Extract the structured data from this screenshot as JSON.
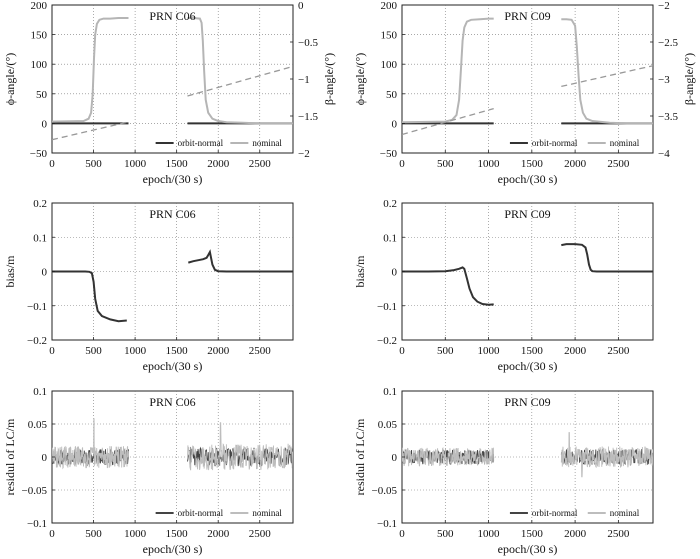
{
  "chart_data": [
    {
      "id": "p1",
      "type": "line",
      "title": "PRN C06",
      "xlabel": "epoch/(30 s)",
      "ylabel": "ϕ-angle/(°)",
      "ylabel_right": "β-angle/(°)",
      "xlim": [
        0,
        2900
      ],
      "ylim": [
        -50,
        200
      ],
      "ylim_right": [
        -2,
        0
      ],
      "xticks": [
        "0",
        "500",
        "1000",
        "1500",
        "2000",
        "2500"
      ],
      "yticks": [
        "−50",
        "0",
        "50",
        "100",
        "150",
        "200"
      ],
      "yticks_right": [
        "−2",
        "−1.5",
        "−1",
        "−0.5",
        "0"
      ],
      "grid": true,
      "legend": "bottom-right",
      "legend_entries": [
        "orbit-normal",
        "nominal"
      ],
      "series": [
        {
          "name": "orbit-normal",
          "axis": "left",
          "color": "#333333",
          "segments": [
            {
              "x": [
                0,
                920
              ],
              "y": [
                0,
                0
              ]
            },
            {
              "x": [
                1630,
                2900
              ],
              "y": [
                0,
                0
              ]
            }
          ]
        },
        {
          "name": "nominal",
          "axis": "left",
          "color": "#b5b5b5",
          "segments": [
            {
              "x": [
                0,
                380,
                440,
                470,
                490,
                505,
                520,
                540,
                570,
                620,
                700,
                800,
                900,
                920
              ],
              "y": [
                3,
                4,
                8,
                18,
                50,
                110,
                150,
                168,
                175,
                177,
                177,
                178,
                178,
                178
              ]
            },
            {
              "x": [
                1630,
                1700,
                1780,
                1800,
                1815,
                1830,
                1850,
                1880,
                1930,
                2000,
                2100,
                2300,
                2500,
                2700,
                2900
              ],
              "y": [
                178,
                178,
                177,
                170,
                140,
                90,
                40,
                18,
                8,
                4,
                2,
                1,
                0,
                0,
                0
              ]
            }
          ]
        },
        {
          "name": "β-angle",
          "axis": "right",
          "color": "#999999",
          "dashed": true,
          "segments": [
            {
              "x": [
                0,
                920
              ],
              "y": [
                -1.82,
                -1.58
              ]
            },
            {
              "x": [
                1630,
                2900
              ],
              "y": [
                -1.23,
                -0.83
              ]
            }
          ]
        }
      ]
    },
    {
      "id": "p2",
      "type": "line",
      "title": "PRN C09",
      "xlabel": "epoch/(30 s)",
      "ylabel": "ϕ-angle/(°)",
      "ylabel_right": "β-angle/(°)",
      "xlim": [
        0,
        2900
      ],
      "ylim": [
        -50,
        200
      ],
      "ylim_right": [
        -4,
        -2
      ],
      "xticks": [
        "0",
        "500",
        "1000",
        "1500",
        "2000",
        "2500"
      ],
      "yticks": [
        "−50",
        "0",
        "50",
        "100",
        "150",
        "200"
      ],
      "yticks_right": [
        "−4",
        "−3.5",
        "−3",
        "−2.5",
        "−2"
      ],
      "grid": true,
      "legend": "bottom-right",
      "legend_entries": [
        "orbit-normal",
        "nominal"
      ],
      "series": [
        {
          "name": "orbit-normal",
          "axis": "left",
          "color": "#333333",
          "segments": [
            {
              "x": [
                0,
                1060
              ],
              "y": [
                0,
                0
              ]
            },
            {
              "x": [
                1840,
                2900
              ],
              "y": [
                0,
                0
              ]
            }
          ]
        },
        {
          "name": "nominal",
          "axis": "left",
          "color": "#b5b5b5",
          "segments": [
            {
              "x": [
                0,
                500,
                580,
                630,
                660,
                680,
                700,
                720,
                750,
                800,
                900,
                1000,
                1060
              ],
              "y": [
                2,
                3,
                6,
                14,
                40,
                90,
                140,
                162,
                172,
                175,
                176,
                177,
                177
              ]
            },
            {
              "x": [
                1840,
                1900,
                1960,
                2000,
                2020,
                2040,
                2060,
                2090,
                2130,
                2200,
                2400,
                2600,
                2900
              ],
              "y": [
                176,
                176,
                175,
                165,
                130,
                80,
                40,
                18,
                8,
                4,
                1,
                0,
                0
              ]
            }
          ]
        },
        {
          "name": "β-angle",
          "axis": "right",
          "color": "#999999",
          "dashed": true,
          "segments": [
            {
              "x": [
                0,
                1060
              ],
              "y": [
                -3.75,
                -3.4
              ]
            },
            {
              "x": [
                1840,
                2900
              ],
              "y": [
                -3.1,
                -2.82
              ]
            }
          ]
        }
      ]
    },
    {
      "id": "p3",
      "type": "line",
      "title": "PRN C06",
      "xlabel": "epoch/(30 s)",
      "ylabel": "bias/m",
      "xlim": [
        0,
        2900
      ],
      "ylim": [
        -0.2,
        0.2
      ],
      "xticks": [
        "0",
        "500",
        "1000",
        "1500",
        "2000",
        "2500"
      ],
      "yticks": [
        "−0.2",
        "−0.1",
        "0",
        "0.1",
        "0.2"
      ],
      "grid": true,
      "series": [
        {
          "name": "bias",
          "color": "#333333",
          "segments": [
            {
              "x": [
                0,
                400,
                450,
                480,
                500,
                520,
                550,
                600,
                700,
                800,
                900
              ],
              "y": [
                0,
                0,
                -0.001,
                -0.005,
                -0.03,
                -0.08,
                -0.115,
                -0.13,
                -0.14,
                -0.145,
                -0.143
              ]
            },
            {
              "x": [
                1640,
                1700,
                1760,
                1820,
                1860,
                1880,
                1900,
                1910,
                1930,
                1960,
                2000,
                2100,
                2300,
                2500,
                2700,
                2900
              ],
              "y": [
                0.026,
                0.03,
                0.033,
                0.036,
                0.04,
                0.048,
                0.057,
                0.045,
                0.02,
                0.005,
                0.001,
                0,
                0,
                0,
                0,
                0
              ]
            }
          ]
        }
      ]
    },
    {
      "id": "p4",
      "type": "line",
      "title": "PRN C09",
      "xlabel": "epoch/(30 s)",
      "ylabel": "bias/m",
      "xlim": [
        0,
        2900
      ],
      "ylim": [
        -0.2,
        0.2
      ],
      "xticks": [
        "0",
        "500",
        "1000",
        "1500",
        "2000",
        "2500"
      ],
      "yticks": [
        "−0.2",
        "−0.1",
        "0",
        "0.1",
        "0.2"
      ],
      "grid": true,
      "series": [
        {
          "name": "bias",
          "color": "#333333",
          "segments": [
            {
              "x": [
                0,
                300,
                500,
                600,
                660,
                700,
                720,
                750,
                780,
                820,
                870,
                930,
                1000,
                1060
              ],
              "y": [
                0,
                0,
                0.001,
                0.004,
                0.008,
                0.012,
                0.008,
                -0.02,
                -0.05,
                -0.075,
                -0.088,
                -0.095,
                -0.097,
                -0.096
              ]
            },
            {
              "x": [
                1840,
                1900,
                2000,
                2080,
                2120,
                2140,
                2160,
                2180,
                2200,
                2250,
                2400,
                2600,
                2900
              ],
              "y": [
                0.077,
                0.08,
                0.08,
                0.078,
                0.07,
                0.05,
                0.02,
                0.005,
                0.001,
                0,
                0,
                0,
                0
              ]
            }
          ]
        }
      ]
    },
    {
      "id": "p5",
      "type": "line",
      "title": "PRN C06",
      "xlabel": "epoch/(30 s)",
      "ylabel": "residul of LC/m",
      "xlim": [
        0,
        2900
      ],
      "ylim": [
        -0.1,
        0.1
      ],
      "xticks": [
        "0",
        "500",
        "1000",
        "1500",
        "2000",
        "2500"
      ],
      "yticks": [
        "−0.1",
        "−0.05",
        "0",
        "0.05",
        "0.1"
      ],
      "grid": true,
      "legend": "bottom-right",
      "legend_entries": [
        "orbit-normal",
        "nominal"
      ],
      "series": [
        {
          "name": "orbit-normal",
          "color": "#444444",
          "noise": [
            [
              0,
              920,
              0.012
            ],
            [
              1630,
              2900,
              0.014
            ]
          ],
          "seed": 11
        },
        {
          "name": "nominal",
          "color": "#bdbdbd",
          "noise": [
            [
              0,
              920,
              0.017
            ],
            [
              1630,
              2900,
              0.02
            ]
          ],
          "seed": 29,
          "spikes": [
            [
              505,
              0.058
            ],
            [
              2030,
              0.052
            ]
          ]
        }
      ]
    },
    {
      "id": "p6",
      "type": "line",
      "title": "PRN C09",
      "xlabel": "epoch/(30 s)",
      "ylabel": "residul of LC/m",
      "xlim": [
        0,
        2900
      ],
      "ylim": [
        -0.1,
        0.1
      ],
      "xticks": [
        "0",
        "500",
        "1000",
        "1500",
        "2000",
        "2500"
      ],
      "yticks": [
        "−0.1",
        "−0.05",
        "0",
        "0.05",
        "0.1"
      ],
      "grid": true,
      "legend": "bottom-right",
      "legend_entries": [
        "orbit-normal",
        "nominal"
      ],
      "series": [
        {
          "name": "orbit-normal",
          "color": "#444444",
          "noise": [
            [
              0,
              1060,
              0.011
            ],
            [
              1840,
              2900,
              0.012
            ]
          ],
          "seed": 7
        },
        {
          "name": "nominal",
          "color": "#bdbdbd",
          "noise": [
            [
              0,
              1060,
              0.014
            ],
            [
              1840,
              2900,
              0.016
            ]
          ],
          "seed": 41,
          "spikes": [
            [
              1930,
              0.037
            ],
            [
              2080,
              -0.03
            ]
          ]
        }
      ]
    }
  ]
}
